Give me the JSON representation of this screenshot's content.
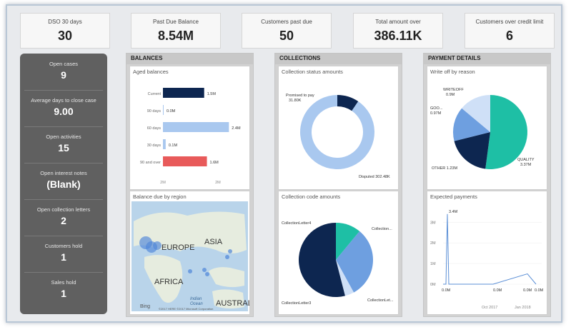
{
  "kpis": [
    {
      "label": "DSO 30 days",
      "value": "30"
    },
    {
      "label": "Past Due Balance",
      "value": "8.54M"
    },
    {
      "label": "Customers past due",
      "value": "50"
    },
    {
      "label": "Total amount over",
      "value": "386.11K"
    },
    {
      "label": "Customers over credit limit",
      "value": "6"
    }
  ],
  "sidebar": [
    {
      "label": "Open cases",
      "value": "9"
    },
    {
      "label": "Average days to close case",
      "value": "9.00"
    },
    {
      "label": "Open activities",
      "value": "15"
    },
    {
      "label": "Open interest notes",
      "value": "(Blank)"
    },
    {
      "label": "Open collection letters",
      "value": "2"
    },
    {
      "label": "Customers hold",
      "value": "1"
    },
    {
      "label": "Sales hold",
      "value": "1"
    }
  ],
  "sections": {
    "balances": {
      "title": "BALANCES",
      "aged_title": "Aged balances",
      "map_title": "Balance due by region",
      "map_labels": {
        "europe": "EUROPE",
        "asia": "ASIA",
        "africa": "AFRICA",
        "austral": "AUSTRAL",
        "indian": "Indian",
        "ocean": "Ocean",
        "brand": "Bing",
        "copyright": "©2017 HERE ©2017 Microsoft Corporation"
      }
    },
    "collections": {
      "title": "COLLECTIONS",
      "status_title": "Collection status amounts",
      "code_title": "Collection code amounts"
    },
    "payments": {
      "title": "PAYMENT DETAILS",
      "writeoff_title": "Write off by reason",
      "expected_title": "Expected payments"
    }
  },
  "colors": {
    "navy": "#0d2650",
    "light_blue": "#a9c8ef",
    "red": "#e85a5a",
    "teal": "#1ebfa5",
    "mid_blue": "#6e9fe0",
    "pale_blue": "#cfe0f7"
  },
  "chart_data": [
    {
      "type": "bar",
      "title": "Aged balances",
      "categories": [
        "Current",
        "90 days",
        "60 days",
        "30 days",
        "90 and over"
      ],
      "values": [
        1.5,
        0.0,
        2.4,
        0.1,
        1.6
      ],
      "value_labels": [
        "1.5M",
        "0.0M",
        "2.4M",
        "0.1M",
        "1.6M"
      ],
      "bar_colors": [
        "#0d2650",
        "#a9c8ef",
        "#a9c8ef",
        "#a9c8ef",
        "#e85a5a"
      ],
      "x_ticks": [
        "2M",
        "2M"
      ],
      "xlim": [
        0,
        2.6
      ]
    },
    {
      "type": "pie",
      "title": "Collection status amounts",
      "donut": true,
      "labels": [
        "Promised to pay",
        "Disputed"
      ],
      "values": [
        31.8,
        302.48
      ],
      "value_labels": [
        "31.80K",
        "302.48K"
      ],
      "colors": [
        "#0d2650",
        "#a9c8ef"
      ]
    },
    {
      "type": "pie",
      "title": "Collection code amounts",
      "labels": [
        "CollectionLetter4",
        "Collection...",
        "CollectionLet...",
        "CollectionLetter3"
      ],
      "values": [
        0.11,
        0.31,
        0.04,
        0.54
      ],
      "colors": [
        "#1ebfa5",
        "#6e9fe0",
        "#cfe0f7",
        "#0d2650"
      ]
    },
    {
      "type": "pie",
      "title": "Write off by reason",
      "labels": [
        "QUALITY",
        "OTHER",
        "GOO...",
        "WRITEOFF"
      ],
      "values": [
        3.37,
        1.23,
        0.97,
        0.9
      ],
      "value_labels": [
        "3.37M",
        "1.23M",
        "0.97M",
        "0.9M"
      ],
      "colors": [
        "#1ebfa5",
        "#0d2650",
        "#6e9fe0",
        "#cfe0f7"
      ]
    },
    {
      "type": "line",
      "title": "Expected payments",
      "x_ticks": [
        "Oct 2017",
        "Jan 2018"
      ],
      "y_ticks": [
        "3M",
        "2M",
        "1M",
        "0M"
      ],
      "ylim": [
        0,
        3.6
      ],
      "point_labels": [
        {
          "text": "3.4M"
        },
        {
          "text": "0.0M"
        },
        {
          "text": "0.0M"
        },
        {
          "text": "0.0M"
        },
        {
          "text": "0.0M"
        }
      ]
    }
  ]
}
